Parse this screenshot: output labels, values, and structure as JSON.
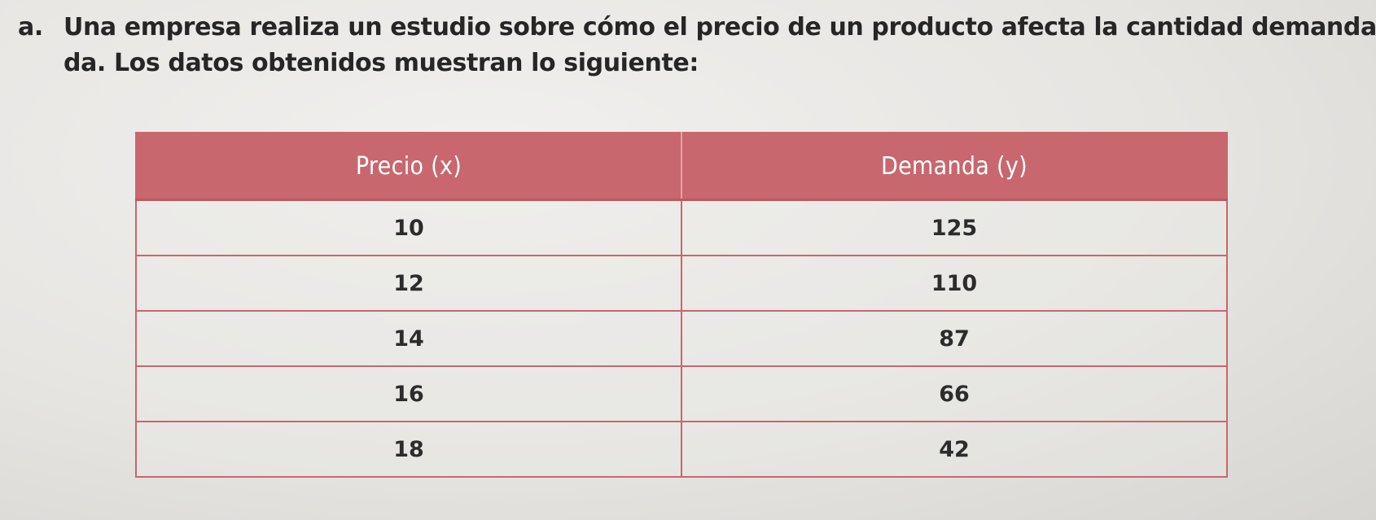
{
  "problem": {
    "marker": "a.",
    "line1": "Una empresa realiza un estudio sobre cómo el precio de un producto afecta la cantidad demanda-",
    "line2": "da. Los datos obtenidos muestran lo siguiente:"
  },
  "table": {
    "headers": [
      "Precio (x)",
      "Demanda (y)"
    ],
    "rows": [
      [
        "10",
        "125"
      ],
      [
        "12",
        "110"
      ],
      [
        "14",
        "87"
      ],
      [
        "16",
        "66"
      ],
      [
        "18",
        "42"
      ]
    ],
    "header_color": "#c8676d",
    "border_color": "#c8676d"
  }
}
